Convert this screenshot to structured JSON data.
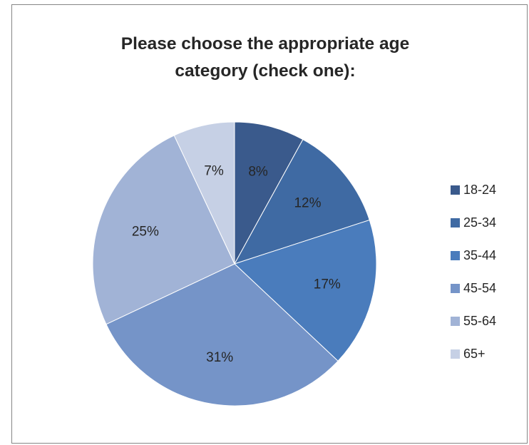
{
  "chart_data": {
    "type": "pie",
    "title_lines": [
      "Please choose the appropriate age",
      "category (check one):"
    ],
    "categories": [
      "18-24",
      "25-34",
      "35-44",
      "45-54",
      "55-64",
      "65+"
    ],
    "values": [
      8,
      12,
      17,
      31,
      25,
      7
    ],
    "labels": [
      "8%",
      "12%",
      "17%",
      "31%",
      "25%",
      "7%"
    ],
    "colors": [
      "#3a5a8c",
      "#3f6aa3",
      "#4a7cbc",
      "#7594c8",
      "#a1b3d6",
      "#c6d0e5"
    ],
    "legend_position": "right"
  }
}
